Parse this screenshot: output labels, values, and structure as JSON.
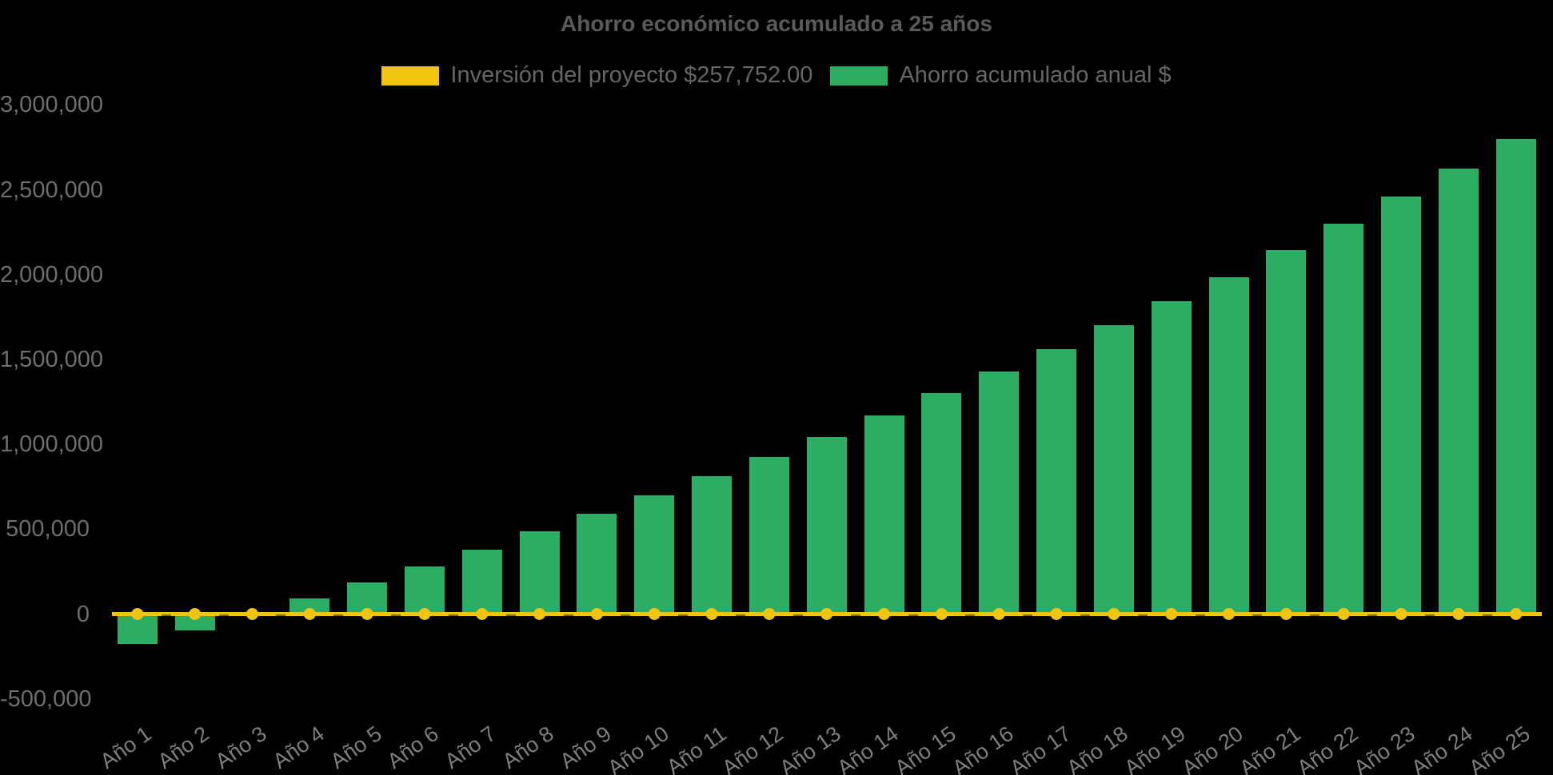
{
  "chart": {
    "background_color": "#000000",
    "title_color": "#5a5a5a",
    "y_axis_label_color": "#6e6e6e",
    "x_axis_label_color": "#7e7e7e"
  },
  "legend": {
    "items": [
      {
        "label": "Inversión del proyecto $257,752.00",
        "color": "#F1C40F",
        "marker": "yellow-swatch"
      },
      {
        "label": "Ahorro acumulado anual $",
        "color": "#2BAD64",
        "marker": "green-swatch"
      }
    ]
  },
  "chart_data": {
    "type": "bar",
    "title": "Ahorro económico acumulado a 25 años",
    "categories": [
      "Año 1",
      "Año 2",
      "Año 3",
      "Año 4",
      "Año 5",
      "Año 6",
      "Año 7",
      "Año 8",
      "Año 9",
      "Año 10",
      "Año 11",
      "Año 12",
      "Año 13",
      "Año 14",
      "Año 15",
      "Año 16",
      "Año 17",
      "Año 18",
      "Año 19",
      "Año 20",
      "Año 21",
      "Año 22",
      "Año 23",
      "Año 24",
      "Año 25"
    ],
    "series": [
      {
        "name": "Ahorro acumulado anual $",
        "type": "column",
        "color": "#2BAD64",
        "values": [
          -175000,
          -95000,
          0,
          90000,
          185000,
          280000,
          380000,
          485000,
          590000,
          700000,
          810000,
          925000,
          1045000,
          1170000,
          1300000,
          1430000,
          1560000,
          1700000,
          1845000,
          1985000,
          2145000,
          2300000,
          2460000,
          2625000,
          2800000
        ]
      },
      {
        "name": "Inversión del proyecto $257,752.00",
        "type": "line",
        "color": "#F1C40F",
        "marker": "circle",
        "values": [
          0,
          0,
          0,
          0,
          0,
          0,
          0,
          0,
          0,
          0,
          0,
          0,
          0,
          0,
          0,
          0,
          0,
          0,
          0,
          0,
          0,
          0,
          0,
          0,
          0
        ]
      }
    ],
    "ylabel": "",
    "xlabel": "",
    "ylim": [
      -500000,
      3000000
    ],
    "y_tick_step": 500000,
    "y_tick_labels": [
      "3,000,000",
      "2,500,000",
      "2,000,000",
      "1,500,000",
      "1,000,000",
      "500,000",
      "0",
      "-500,000"
    ],
    "grid": false,
    "legend_position": "top",
    "x_label_rotation": -35
  }
}
